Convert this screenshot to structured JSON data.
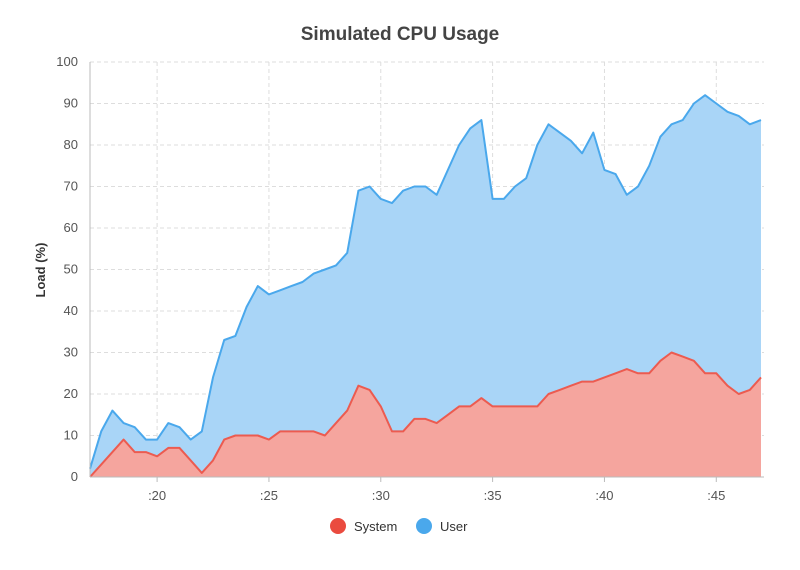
{
  "chart_data": {
    "type": "area",
    "stacked": true,
    "title": "Simulated CPU Usage",
    "xlabel": "",
    "ylabel": "Load (%)",
    "ylim": [
      0,
      100
    ],
    "yticks": [
      0,
      10,
      20,
      30,
      40,
      50,
      60,
      70,
      80,
      90,
      100
    ],
    "xlim": [
      "17:00",
      "47:08"
    ],
    "xticks": [
      ":20",
      ":25",
      ":30",
      ":35",
      ":40",
      ":45"
    ],
    "grid": true,
    "legend_position": "bottom",
    "x": [
      "17:00",
      "17:30",
      "18:00",
      "18:30",
      "19:00",
      "19:30",
      "20:00",
      "20:30",
      "21:00",
      "21:30",
      "22:00",
      "22:30",
      "23:00",
      "23:30",
      "24:00",
      "24:30",
      "25:00",
      "25:30",
      "26:00",
      "26:30",
      "27:00",
      "27:30",
      "28:00",
      "28:30",
      "29:00",
      "29:30",
      "30:00",
      "30:30",
      "31:00",
      "31:30",
      "32:00",
      "32:30",
      "33:00",
      "33:30",
      "34:00",
      "34:30",
      "35:00",
      "35:30",
      "36:00",
      "36:30",
      "37:00",
      "37:30",
      "38:00",
      "38:30",
      "39:00",
      "39:30",
      "40:00",
      "40:30",
      "41:00",
      "41:30",
      "42:00",
      "42:30",
      "43:00",
      "43:30",
      "44:00",
      "44:30",
      "45:00",
      "45:30",
      "46:00",
      "46:30",
      "47:00"
    ],
    "series": [
      {
        "name": "System",
        "color": "#ec5b50",
        "fill": "#f5a59e",
        "values": [
          0,
          3,
          6,
          9,
          6,
          6,
          5,
          7,
          7,
          4,
          1,
          4,
          9,
          10,
          10,
          10,
          9,
          11,
          11,
          11,
          11,
          10,
          13,
          16,
          22,
          21,
          17,
          11,
          11,
          14,
          14,
          13,
          15,
          17,
          17,
          19,
          17,
          17,
          17,
          17,
          17,
          20,
          21,
          22,
          23,
          23,
          24,
          25,
          26,
          25,
          25,
          28,
          30,
          29,
          28,
          25,
          25,
          22,
          20,
          21,
          24
        ]
      },
      {
        "name": "User",
        "color": "#4aa8ec",
        "fill": "#a9d5f7",
        "values": [
          2,
          8,
          10,
          4,
          6,
          3,
          4,
          6,
          5,
          5,
          10,
          20,
          24,
          24,
          31,
          36,
          35,
          34,
          35,
          36,
          38,
          40,
          38,
          38,
          47,
          49,
          50,
          55,
          58,
          56,
          56,
          55,
          59,
          63,
          67,
          67,
          50,
          50,
          53,
          55,
          63,
          65,
          62,
          59,
          55,
          60,
          50,
          48,
          42,
          45,
          50,
          54,
          55,
          57,
          62,
          67,
          65,
          66,
          67,
          64,
          62
        ]
      }
    ]
  },
  "legend": {
    "items": [
      {
        "label": "System",
        "color": "#ea4b3f"
      },
      {
        "label": "User",
        "color": "#4aa8ec"
      }
    ]
  }
}
